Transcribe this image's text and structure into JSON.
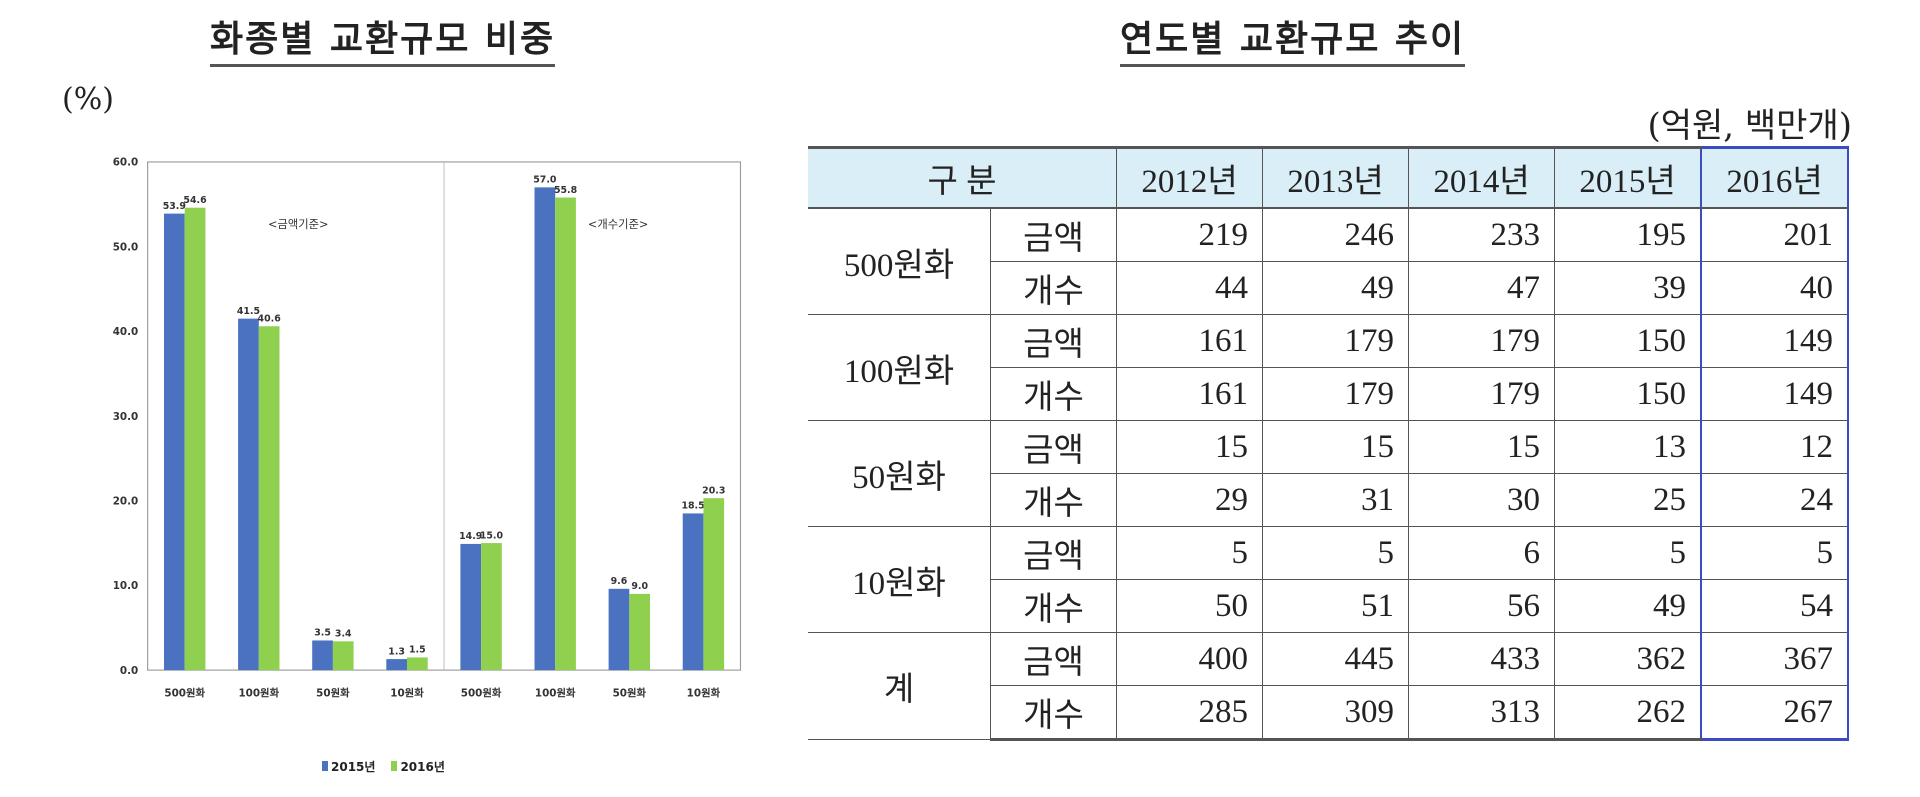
{
  "chart_title": "화종별 교환규모 비중",
  "chart_unit": "(%)",
  "chart_data": {
    "type": "bar",
    "title": "화종별 교환규모 비중",
    "ylabel": "(%)",
    "ylim": [
      0,
      60
    ],
    "yticks": [
      "0.0",
      "10.0",
      "20.0",
      "30.0",
      "40.0",
      "50.0",
      "60.0"
    ],
    "categories": [
      "500원화",
      "100원화",
      "50원화",
      "10원화",
      "500원화",
      "100원화",
      "50원화",
      "10원화"
    ],
    "group_labels": [
      "<금액기준>",
      "<개수기준>"
    ],
    "series": [
      {
        "name": "2015년",
        "values": [
          53.9,
          41.5,
          3.5,
          1.3,
          14.9,
          57.0,
          9.6,
          18.5
        ],
        "labels": [
          "53.9",
          "41.5",
          "3.5",
          "1.3",
          "14.9",
          "57.0",
          "9.6",
          "18.5"
        ]
      },
      {
        "name": "2016년",
        "values": [
          54.6,
          40.6,
          3.4,
          1.5,
          15.0,
          55.8,
          9.0,
          20.3
        ],
        "labels": [
          "54.6",
          "40.6",
          "3.4",
          "1.5",
          "15.0",
          "55.8",
          "9.0",
          "20.3"
        ]
      }
    ],
    "colors": [
      "#4a72c0",
      "#8fd14f"
    ],
    "legend_position": "bottom",
    "grid": false
  },
  "table_title": "연도별 교환규모 추이",
  "table_unit": "(억원, 백만개)",
  "table": {
    "header_first": "구 분",
    "years": [
      "2012년",
      "2013년",
      "2014년",
      "2015년",
      "2016년"
    ],
    "groups": [
      {
        "name": "500원화",
        "rows": [
          {
            "sub": "금액",
            "values": [
              "219",
              "246",
              "233",
              "195",
              "201"
            ]
          },
          {
            "sub": "개수",
            "values": [
              "44",
              "49",
              "47",
              "39",
              "40"
            ]
          }
        ]
      },
      {
        "name": "100원화",
        "rows": [
          {
            "sub": "금액",
            "values": [
              "161",
              "179",
              "179",
              "150",
              "149"
            ]
          },
          {
            "sub": "개수",
            "values": [
              "161",
              "179",
              "179",
              "150",
              "149"
            ]
          }
        ]
      },
      {
        "name": "50원화",
        "rows": [
          {
            "sub": "금액",
            "values": [
              "15",
              "15",
              "15",
              "13",
              "12"
            ]
          },
          {
            "sub": "개수",
            "values": [
              "29",
              "31",
              "30",
              "25",
              "24"
            ]
          }
        ]
      },
      {
        "name": "10원화",
        "rows": [
          {
            "sub": "금액",
            "values": [
              "5",
              "5",
              "6",
              "5",
              "5"
            ]
          },
          {
            "sub": "개수",
            "values": [
              "50",
              "51",
              "56",
              "49",
              "54"
            ]
          }
        ]
      },
      {
        "name": "계",
        "rows": [
          {
            "sub": "금액",
            "values": [
              "400",
              "445",
              "433",
              "362",
              "367"
            ]
          },
          {
            "sub": "개수",
            "values": [
              "285",
              "309",
              "313",
              "262",
              "267"
            ]
          }
        ]
      }
    ]
  }
}
